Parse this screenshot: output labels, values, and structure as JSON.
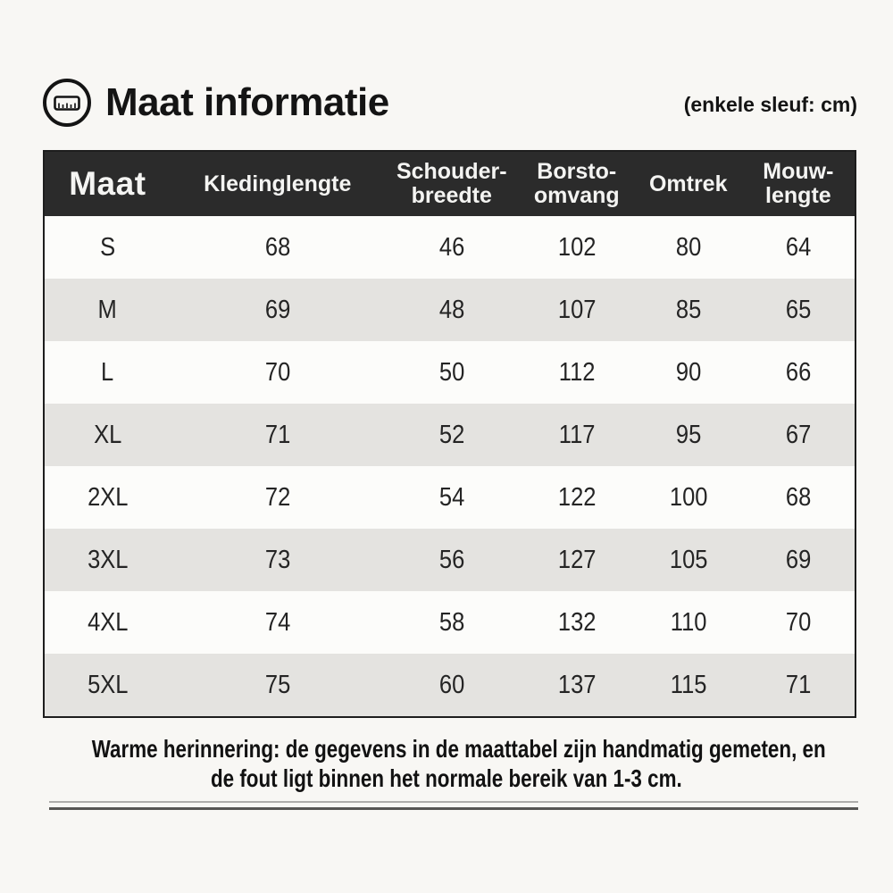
{
  "header": {
    "title": "Maat informatie",
    "unit_note": "(enkele sleuf: cm)",
    "icon": "ruler-icon"
  },
  "table": {
    "columns": [
      "Maat",
      "Kledinglengte",
      "Schouder-\nbreedte",
      "Borsto-\nomvang",
      "Omtrek",
      "Mouw-\nlengte"
    ],
    "rows": [
      {
        "size": "S",
        "values": [
          "68",
          "46",
          "102",
          "80",
          "64"
        ]
      },
      {
        "size": "M",
        "values": [
          "69",
          "48",
          "107",
          "85",
          "65"
        ]
      },
      {
        "size": "L",
        "values": [
          "70",
          "50",
          "112",
          "90",
          "66"
        ]
      },
      {
        "size": "XL",
        "values": [
          "71",
          "52",
          "117",
          "95",
          "67"
        ]
      },
      {
        "size": "2XL",
        "values": [
          "72",
          "54",
          "122",
          "100",
          "68"
        ]
      },
      {
        "size": "3XL",
        "values": [
          "73",
          "56",
          "127",
          "105",
          "69"
        ]
      },
      {
        "size": "4XL",
        "values": [
          "74",
          "58",
          "132",
          "110",
          "70"
        ]
      },
      {
        "size": "5XL",
        "values": [
          "75",
          "60",
          "137",
          "115",
          "71"
        ]
      }
    ]
  },
  "footer": {
    "note_line1": "Warme herinnering: de gegevens in de maattabel zijn handmatig gemeten, en",
    "note_line2": "de fout ligt binnen het normale bereik van 1-3 cm."
  },
  "colors": {
    "header_bg": "#2b2b2b",
    "header_text": "#f4f4f2",
    "row_bg": "#fcfcfa",
    "row_alt_bg": "#e4e3e0",
    "page_bg": "#f8f7f4",
    "text": "#1c1c1c"
  }
}
